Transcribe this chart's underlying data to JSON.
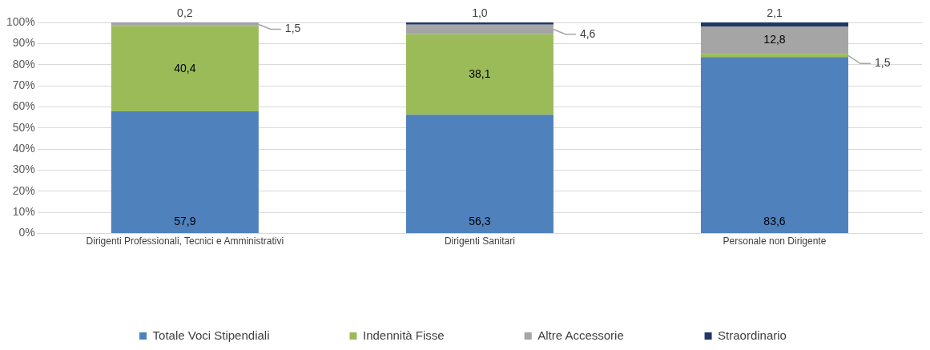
{
  "chart_data": {
    "type": "bar",
    "stacked": true,
    "categories": [
      "Dirigenti Professionali, Tecnici e Amministrativi",
      "Dirigenti Sanitari",
      "Personale non Dirigente"
    ],
    "series": [
      {
        "name": "Totale Voci Stipendiali",
        "color": "#4f81bd",
        "values": [
          57.9,
          56.3,
          83.6
        ],
        "value_labels": [
          "57,9",
          "56,3",
          "83,6"
        ]
      },
      {
        "name": "Indennità Fisse",
        "color": "#9bbb59",
        "values": [
          40.4,
          38.1,
          1.5
        ],
        "value_labels": [
          "40,4",
          "38,1",
          "1,5"
        ]
      },
      {
        "name": "Altre Accessorie",
        "color": "#a5a5a5",
        "values": [
          1.5,
          4.6,
          12.8
        ],
        "value_labels": [
          "1,5",
          "4,6",
          "12,8"
        ]
      },
      {
        "name": "Straordinario",
        "color": "#1f3864",
        "values": [
          0.2,
          1.0,
          2.1
        ],
        "value_labels": [
          "0,2",
          "1,0",
          "2,1"
        ]
      }
    ],
    "ylim": [
      0,
      100
    ],
    "yticks": [
      {
        "value": 0,
        "label": "0%"
      },
      {
        "value": 10,
        "label": "10%"
      },
      {
        "value": 20,
        "label": "20%"
      },
      {
        "value": 30,
        "label": "30%"
      },
      {
        "value": 40,
        "label": "40%"
      },
      {
        "value": 50,
        "label": "50%"
      },
      {
        "value": 60,
        "label": "60%"
      },
      {
        "value": 70,
        "label": "70%"
      },
      {
        "value": 80,
        "label": "80%"
      },
      {
        "value": 90,
        "label": "90%"
      },
      {
        "value": 100,
        "label": "100%"
      }
    ],
    "grid": "y",
    "legend": "bottom"
  }
}
